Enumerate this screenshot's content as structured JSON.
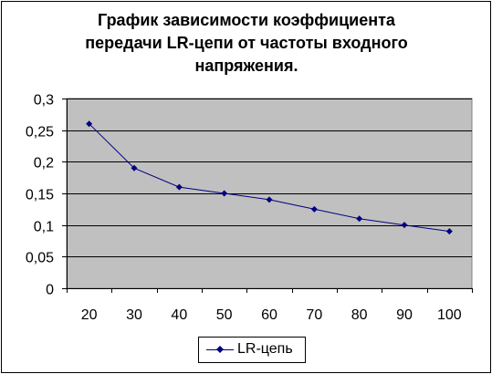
{
  "chart_data": {
    "type": "line",
    "title_lines": [
      "График зависимости коэффициента",
      "передачи LR-цепи от частоты входного",
      "напряжения."
    ],
    "categories": [
      "20",
      "30",
      "40",
      "50",
      "60",
      "70",
      "80",
      "90",
      "100"
    ],
    "series": [
      {
        "name": "LR-цепь",
        "values": [
          0.26,
          0.19,
          0.16,
          0.15,
          0.14,
          0.125,
          0.11,
          0.1,
          0.09
        ]
      }
    ],
    "ylim": [
      0,
      0.3
    ],
    "yticks": [
      0,
      0.05,
      0.1,
      0.15,
      0.2,
      0.25,
      0.3
    ],
    "ytick_labels": [
      "0",
      "0,05",
      "0,1",
      "0,15",
      "0,2",
      "0,25",
      "0,3"
    ],
    "grid": true,
    "legend_position": "bottom",
    "colors": {
      "plot_background": "#C0C0C0",
      "series_line": "#000080",
      "gridline": "#000000"
    }
  }
}
